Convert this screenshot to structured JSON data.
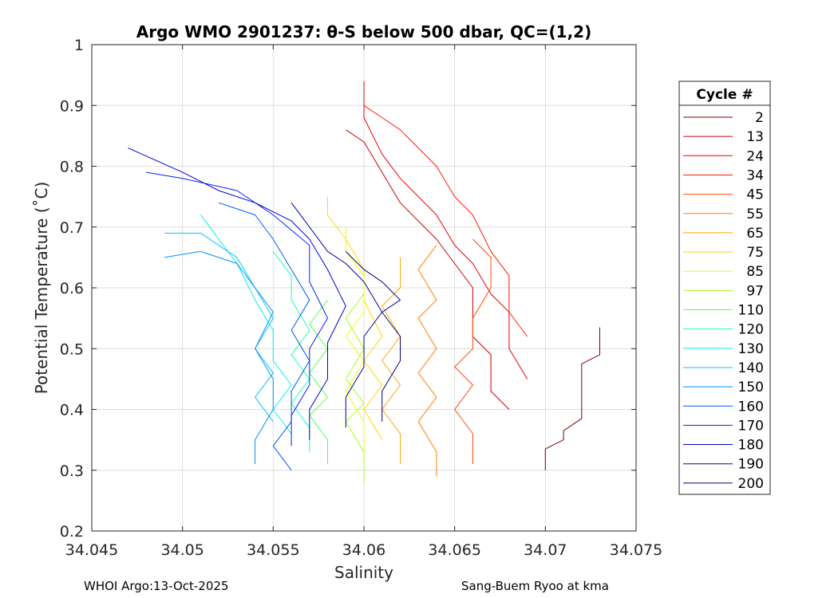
{
  "footer": {
    "left": "WHOI Argo:13-Oct-2025",
    "right": "Sang-Buem Ryoo at kma"
  },
  "chart_data": {
    "type": "line",
    "title": "Argo WMO 2901237: θ-S below 500 dbar,  QC=(1,2)",
    "xlabel": "Salinity",
    "ylabel": "Potential Temperature (˚C)",
    "xlim": [
      34.045,
      34.075
    ],
    "ylim": [
      0.2,
      1.0
    ],
    "xticks": [
      34.045,
      34.05,
      34.055,
      34.06,
      34.065,
      34.07,
      34.075
    ],
    "xtick_labels": [
      "34.045",
      "34.05",
      "34.055",
      "34.06",
      "34.065",
      "34.07",
      "34.075"
    ],
    "yticks": [
      0.2,
      0.3,
      0.4,
      0.5,
      0.6,
      0.7,
      0.8,
      0.9,
      1.0
    ],
    "ytick_labels": [
      "0.2",
      "0.3",
      "0.4",
      "0.5",
      "0.6",
      "0.7",
      "0.8",
      "0.9",
      "1"
    ],
    "grid": true,
    "legend": {
      "title": "Cycle #",
      "placement": "outside-right",
      "entries": [
        {
          "label": "2",
          "color": "#7f0000"
        },
        {
          "label": "13",
          "color": "#c80000"
        },
        {
          "label": "24",
          "color": "#e60000"
        },
        {
          "label": "34",
          "color": "#ff1a00"
        },
        {
          "label": "45",
          "color": "#ff4a00"
        },
        {
          "label": "55",
          "color": "#ff7f00"
        },
        {
          "label": "65",
          "color": "#ffa500"
        },
        {
          "label": "75",
          "color": "#ffd700"
        },
        {
          "label": "85",
          "color": "#eaff00"
        },
        {
          "label": "97",
          "color": "#a6ff1a"
        },
        {
          "label": "110",
          "color": "#55ff55"
        },
        {
          "label": "120",
          "color": "#1affb0"
        },
        {
          "label": "130",
          "color": "#00f0f0"
        },
        {
          "label": "140",
          "color": "#00c4ff"
        },
        {
          "label": "150",
          "color": "#0090ff"
        },
        {
          "label": "160",
          "color": "#0055ff"
        },
        {
          "label": "170",
          "color": "#0020ff"
        },
        {
          "label": "180",
          "color": "#0000d0"
        },
        {
          "label": "190",
          "color": "#00009a"
        },
        {
          "label": "200",
          "color": "#000080"
        }
      ]
    },
    "series": [
      {
        "name": "2",
        "color": "#7f0000",
        "points": [
          [
            34.07,
            0.3
          ],
          [
            34.07,
            0.335
          ],
          [
            34.071,
            0.35
          ],
          [
            34.071,
            0.365
          ],
          [
            34.072,
            0.385
          ],
          [
            34.072,
            0.475
          ],
          [
            34.073,
            0.49
          ],
          [
            34.073,
            0.535
          ]
        ]
      },
      {
        "name": "13",
        "color": "#c80000",
        "points": [
          [
            34.068,
            0.4
          ],
          [
            34.067,
            0.43
          ],
          [
            34.067,
            0.49
          ],
          [
            34.066,
            0.52
          ],
          [
            34.066,
            0.6
          ],
          [
            34.065,
            0.64
          ],
          [
            34.064,
            0.68
          ],
          [
            34.062,
            0.74
          ],
          [
            34.061,
            0.79
          ],
          [
            34.06,
            0.84
          ],
          [
            34.059,
            0.86
          ]
        ]
      },
      {
        "name": "24",
        "color": "#e60000",
        "points": [
          [
            34.069,
            0.45
          ],
          [
            34.068,
            0.5
          ],
          [
            34.068,
            0.56
          ],
          [
            34.067,
            0.59
          ],
          [
            34.066,
            0.64
          ],
          [
            34.065,
            0.67
          ],
          [
            34.064,
            0.72
          ],
          [
            34.062,
            0.78
          ],
          [
            34.061,
            0.82
          ],
          [
            34.06,
            0.88
          ],
          [
            34.06,
            0.94
          ]
        ]
      },
      {
        "name": "34",
        "color": "#ff1a00",
        "points": [
          [
            34.069,
            0.52
          ],
          [
            34.068,
            0.56
          ],
          [
            34.068,
            0.62
          ],
          [
            34.067,
            0.66
          ],
          [
            34.066,
            0.72
          ],
          [
            34.065,
            0.75
          ],
          [
            34.064,
            0.8
          ],
          [
            34.063,
            0.83
          ],
          [
            34.062,
            0.86
          ],
          [
            34.061,
            0.88
          ],
          [
            34.06,
            0.9
          ]
        ]
      },
      {
        "name": "45",
        "color": "#ff4a00",
        "points": [
          [
            34.066,
            0.31
          ],
          [
            34.066,
            0.36
          ],
          [
            34.065,
            0.4
          ],
          [
            34.066,
            0.44
          ],
          [
            34.065,
            0.47
          ],
          [
            34.066,
            0.5
          ],
          [
            34.066,
            0.55
          ],
          [
            34.067,
            0.6
          ],
          [
            34.067,
            0.65
          ],
          [
            34.066,
            0.68
          ]
        ]
      },
      {
        "name": "55",
        "color": "#ff7f00",
        "points": [
          [
            34.064,
            0.29
          ],
          [
            34.064,
            0.33
          ],
          [
            34.063,
            0.38
          ],
          [
            34.064,
            0.42
          ],
          [
            34.063,
            0.46
          ],
          [
            34.064,
            0.5
          ],
          [
            34.063,
            0.55
          ],
          [
            34.064,
            0.58
          ],
          [
            34.063,
            0.63
          ],
          [
            34.064,
            0.67
          ]
        ]
      },
      {
        "name": "65",
        "color": "#ffa500",
        "points": [
          [
            34.062,
            0.31
          ],
          [
            34.062,
            0.36
          ],
          [
            34.061,
            0.4
          ],
          [
            34.062,
            0.44
          ],
          [
            34.061,
            0.48
          ],
          [
            34.062,
            0.52
          ],
          [
            34.061,
            0.57
          ],
          [
            34.062,
            0.6
          ],
          [
            34.062,
            0.65
          ]
        ]
      },
      {
        "name": "75",
        "color": "#ffd700",
        "points": [
          [
            34.061,
            0.35
          ],
          [
            34.06,
            0.4
          ],
          [
            34.061,
            0.44
          ],
          [
            34.06,
            0.48
          ],
          [
            34.061,
            0.52
          ],
          [
            34.06,
            0.58
          ],
          [
            34.06,
            0.63
          ],
          [
            34.059,
            0.68
          ],
          [
            34.058,
            0.72
          ],
          [
            34.058,
            0.75
          ]
        ]
      },
      {
        "name": "85",
        "color": "#eaff00",
        "points": [
          [
            34.06,
            0.33
          ],
          [
            34.06,
            0.38
          ],
          [
            34.059,
            0.43
          ],
          [
            34.06,
            0.48
          ],
          [
            34.059,
            0.52
          ],
          [
            34.06,
            0.56
          ],
          [
            34.06,
            0.62
          ],
          [
            34.059,
            0.66
          ],
          [
            34.059,
            0.7
          ]
        ]
      },
      {
        "name": "97",
        "color": "#a6ff1a",
        "points": [
          [
            34.06,
            0.28
          ],
          [
            34.06,
            0.33
          ],
          [
            34.059,
            0.38
          ],
          [
            34.06,
            0.41
          ],
          [
            34.059,
            0.45
          ],
          [
            34.06,
            0.5
          ],
          [
            34.059,
            0.55
          ],
          [
            34.06,
            0.59
          ]
        ]
      },
      {
        "name": "110",
        "color": "#55ff55",
        "points": [
          [
            34.058,
            0.31
          ],
          [
            34.058,
            0.35
          ],
          [
            34.057,
            0.39
          ],
          [
            34.058,
            0.42
          ],
          [
            34.057,
            0.46
          ],
          [
            34.058,
            0.5
          ],
          [
            34.057,
            0.54
          ],
          [
            34.058,
            0.58
          ]
        ]
      },
      {
        "name": "120",
        "color": "#1affb0",
        "points": [
          [
            34.057,
            0.33
          ],
          [
            34.057,
            0.37
          ],
          [
            34.056,
            0.41
          ],
          [
            34.057,
            0.45
          ],
          [
            34.056,
            0.49
          ],
          [
            34.057,
            0.53
          ],
          [
            34.056,
            0.58
          ],
          [
            34.056,
            0.62
          ],
          [
            34.055,
            0.66
          ]
        ]
      },
      {
        "name": "130",
        "color": "#00f0f0",
        "points": [
          [
            34.056,
            0.36
          ],
          [
            34.055,
            0.4
          ],
          [
            34.056,
            0.44
          ],
          [
            34.055,
            0.48
          ],
          [
            34.055,
            0.53
          ],
          [
            34.054,
            0.58
          ],
          [
            34.053,
            0.64
          ],
          [
            34.052,
            0.68
          ],
          [
            34.051,
            0.72
          ]
        ]
      },
      {
        "name": "140",
        "color": "#00c4ff",
        "points": [
          [
            34.055,
            0.38
          ],
          [
            34.054,
            0.42
          ],
          [
            34.055,
            0.46
          ],
          [
            34.054,
            0.5
          ],
          [
            34.055,
            0.55
          ],
          [
            34.054,
            0.6
          ],
          [
            34.053,
            0.65
          ],
          [
            34.051,
            0.69
          ],
          [
            34.049,
            0.69
          ]
        ]
      },
      {
        "name": "150",
        "color": "#0090ff",
        "points": [
          [
            34.054,
            0.31
          ],
          [
            34.054,
            0.35
          ],
          [
            34.055,
            0.4
          ],
          [
            34.055,
            0.45
          ],
          [
            34.054,
            0.5
          ],
          [
            34.055,
            0.56
          ],
          [
            34.054,
            0.6
          ],
          [
            34.053,
            0.64
          ],
          [
            34.051,
            0.66
          ],
          [
            34.049,
            0.65
          ]
        ]
      },
      {
        "name": "160",
        "color": "#0055ff",
        "points": [
          [
            34.056,
            0.3
          ],
          [
            34.055,
            0.34
          ],
          [
            34.056,
            0.38
          ],
          [
            34.056,
            0.43
          ],
          [
            34.057,
            0.48
          ],
          [
            34.056,
            0.53
          ],
          [
            34.057,
            0.58
          ],
          [
            34.056,
            0.63
          ],
          [
            34.055,
            0.68
          ],
          [
            34.054,
            0.72
          ],
          [
            34.052,
            0.74
          ]
        ]
      },
      {
        "name": "170",
        "color": "#0020ff",
        "points": [
          [
            34.056,
            0.34
          ],
          [
            34.056,
            0.39
          ],
          [
            34.057,
            0.44
          ],
          [
            34.057,
            0.5
          ],
          [
            34.058,
            0.55
          ],
          [
            34.057,
            0.61
          ],
          [
            34.057,
            0.67
          ],
          [
            34.055,
            0.72
          ],
          [
            34.053,
            0.76
          ],
          [
            34.05,
            0.78
          ],
          [
            34.048,
            0.79
          ]
        ]
      },
      {
        "name": "180",
        "color": "#0000d0",
        "points": [
          [
            34.057,
            0.35
          ],
          [
            34.057,
            0.4
          ],
          [
            34.058,
            0.45
          ],
          [
            34.058,
            0.51
          ],
          [
            34.059,
            0.57
          ],
          [
            34.058,
            0.63
          ],
          [
            34.057,
            0.68
          ],
          [
            34.056,
            0.71
          ],
          [
            34.054,
            0.74
          ],
          [
            34.052,
            0.76
          ],
          [
            34.05,
            0.79
          ],
          [
            34.047,
            0.83
          ]
        ]
      },
      {
        "name": "190",
        "color": "#00009a",
        "points": [
          [
            34.059,
            0.37
          ],
          [
            34.059,
            0.42
          ],
          [
            34.06,
            0.47
          ],
          [
            34.06,
            0.52
          ],
          [
            34.061,
            0.56
          ],
          [
            34.06,
            0.61
          ],
          [
            34.059,
            0.64
          ],
          [
            34.058,
            0.66
          ],
          [
            34.057,
            0.7
          ],
          [
            34.056,
            0.74
          ]
        ]
      },
      {
        "name": "200",
        "color": "#000080",
        "points": [
          [
            34.061,
            0.38
          ],
          [
            34.061,
            0.43
          ],
          [
            34.062,
            0.48
          ],
          [
            34.062,
            0.52
          ],
          [
            34.061,
            0.56
          ],
          [
            34.062,
            0.58
          ],
          [
            34.061,
            0.61
          ],
          [
            34.06,
            0.63
          ],
          [
            34.059,
            0.66
          ]
        ]
      }
    ]
  }
}
